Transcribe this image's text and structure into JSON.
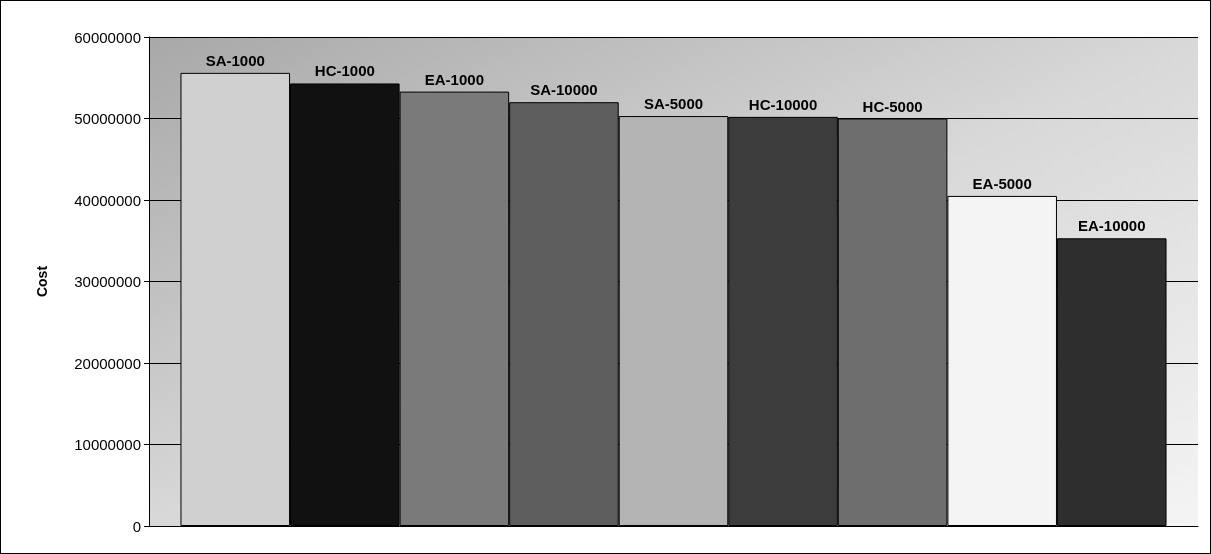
{
  "chart_data": {
    "type": "bar",
    "ylabel": "Cost",
    "categories": [
      null
    ],
    "series": [
      {
        "name": "SA-1000",
        "color": "#d0d0d0",
        "values": [
          55600000
        ]
      },
      {
        "name": "HC-1000",
        "color": "#111111",
        "values": [
          54300000
        ]
      },
      {
        "name": "EA-1000",
        "color": "#7a7a7a",
        "values": [
          53300000
        ]
      },
      {
        "name": "SA-10000",
        "color": "#5e5e5e",
        "values": [
          52000000
        ]
      },
      {
        "name": "SA-5000",
        "color": "#b4b4b4",
        "values": [
          50300000
        ]
      },
      {
        "name": "HC-10000",
        "color": "#3c3c3c",
        "values": [
          50200000
        ]
      },
      {
        "name": "HC-5000",
        "color": "#6e6e6e",
        "values": [
          50000000
        ]
      },
      {
        "name": "EA-5000",
        "color": "#f4f4f4",
        "values": [
          40500000
        ]
      },
      {
        "name": "EA-10000",
        "color": "#2e2e2e",
        "values": [
          35300000
        ]
      }
    ],
    "ylim": [
      0,
      60000000
    ],
    "yticks": [
      0,
      10000000,
      20000000,
      30000000,
      40000000,
      50000000,
      60000000
    ],
    "grid": "y",
    "legend": false
  }
}
